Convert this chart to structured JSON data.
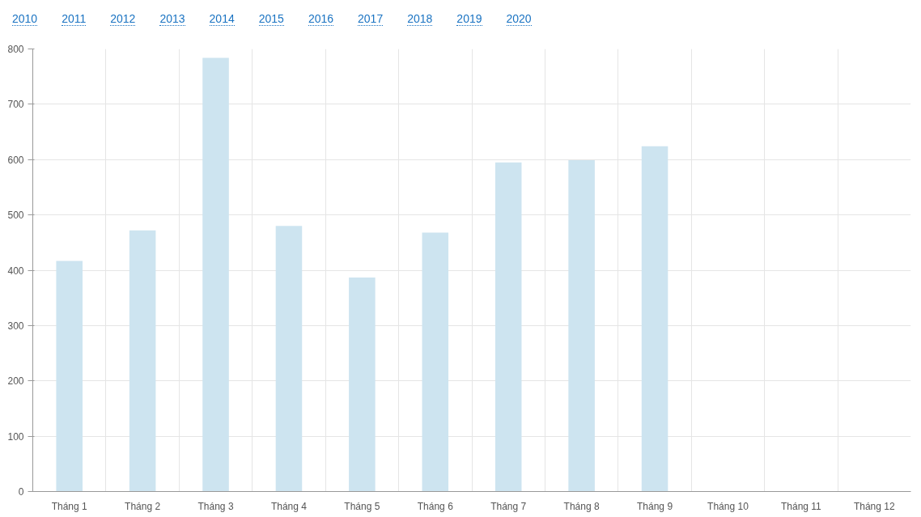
{
  "chart_data": {
    "type": "bar",
    "categories": [
      "Tháng 1",
      "Tháng 2",
      "Tháng 3",
      "Tháng 4",
      "Tháng 5",
      "Tháng 6",
      "Tháng 7",
      "Tháng 8",
      "Tháng 9",
      "Tháng 10",
      "Tháng 11",
      "Tháng 12"
    ],
    "values": [
      417,
      472,
      784,
      480,
      387,
      468,
      595,
      599,
      624,
      null,
      null,
      null
    ],
    "color": "#cde4f0",
    "ylim": [
      0,
      800
    ],
    "yticks": [
      0,
      100,
      200,
      300,
      400,
      500,
      600,
      700,
      800
    ],
    "grid": true,
    "annotations": [
      "2010",
      "2011",
      "2012",
      "2013",
      "2014",
      "2015",
      "2016",
      "2017",
      "2018",
      "2019",
      "2020"
    ]
  }
}
